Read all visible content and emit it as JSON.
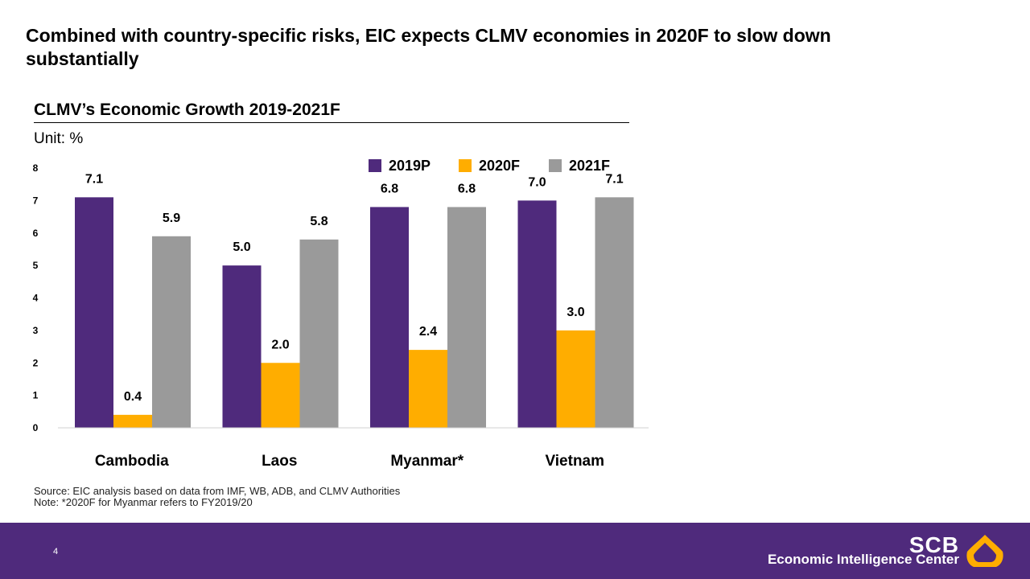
{
  "slide": {
    "title": "Combined with country-specific risks, EIC expects CLMV economies in 2020F to slow down substantially",
    "page_number": "4"
  },
  "chart_data": {
    "type": "bar",
    "title": "CLMV’s Economic Growth 2019-2021F",
    "unit_label": "Unit: %",
    "categories": [
      "Cambodia",
      "Laos",
      "Myanmar*",
      "Vietnam"
    ],
    "series": [
      {
        "name": "2019P",
        "color": "#4f2a7c",
        "values": [
          7.1,
          5.0,
          6.8,
          7.0
        ],
        "labels": [
          "7.1",
          "5.0",
          "6.8",
          "7.0"
        ]
      },
      {
        "name": "2020F",
        "color": "#ffad00",
        "values": [
          0.4,
          2.0,
          2.4,
          3.0
        ],
        "labels": [
          "0.4",
          "2.0",
          "2.4",
          "3.0"
        ]
      },
      {
        "name": "2021F",
        "color": "#9a9a9a",
        "values": [
          5.9,
          5.8,
          6.8,
          7.1
        ],
        "labels": [
          "5.9",
          "5.8",
          "6.8",
          "7.1"
        ]
      }
    ],
    "y_ticks": [
      "0",
      "1",
      "2",
      "3",
      "4",
      "5",
      "6",
      "7",
      "8"
    ],
    "ylim": [
      0,
      8
    ],
    "grid": false,
    "legend_position": "top-right"
  },
  "footnotes": {
    "source": "Source: EIC analysis based on data from IMF, WB, ADB, and CLMV Authorities",
    "note": "Note: *2020F for Myanmar refers to FY2019/20"
  },
  "footer": {
    "logo_text": "SCB",
    "logo_subtitle": "Economic Intelligence Center",
    "background_color": "#4f2a7c",
    "logo_mark_color": "#ffad00"
  }
}
